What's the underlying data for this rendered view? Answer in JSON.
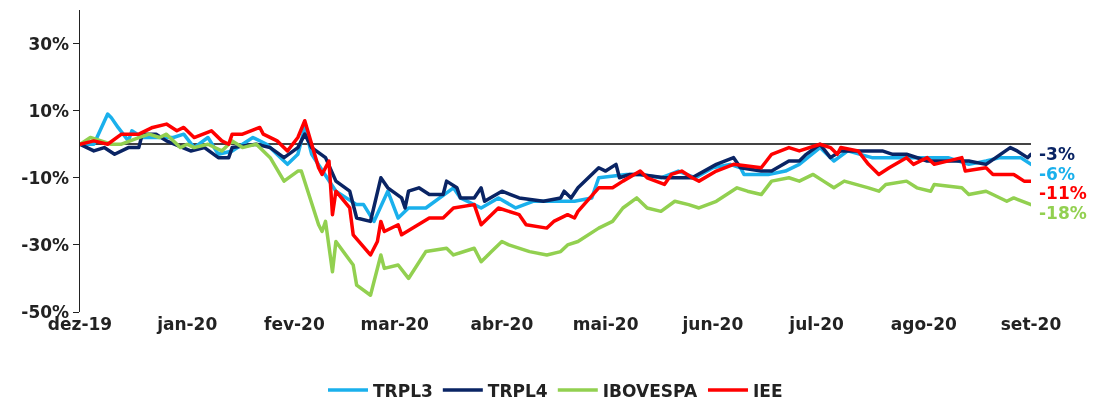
{
  "chart_data": {
    "type": "line",
    "xlim": [
      "2019-12-01",
      "2020-09-01"
    ],
    "xticks": [
      {
        "value": "2019-12-01",
        "label": "dez-19"
      },
      {
        "value": "2020-01-01",
        "label": "jan-20"
      },
      {
        "value": "2020-02-01",
        "label": "fev-20"
      },
      {
        "value": "2020-03-01",
        "label": "mar-20"
      },
      {
        "value": "2020-04-01",
        "label": "abr-20"
      },
      {
        "value": "2020-05-01",
        "label": "mai-20"
      },
      {
        "value": "2020-06-01",
        "label": "jun-20"
      },
      {
        "value": "2020-07-01",
        "label": "jul-20"
      },
      {
        "value": "2020-08-01",
        "label": "ago-20"
      },
      {
        "value": "2020-09-01",
        "label": "set-20"
      }
    ],
    "ylim": [
      -50,
      40
    ],
    "yticks": [
      {
        "value": 30,
        "label": "30%"
      },
      {
        "value": 10,
        "label": "10%"
      },
      {
        "value": -10,
        "label": "-10%"
      },
      {
        "value": -30,
        "label": "-30%"
      },
      {
        "value": -50,
        "label": "-50%"
      }
    ],
    "grid": false,
    "legend": "bottom",
    "marker": "none",
    "line_style": "solid",
    "series": [
      {
        "name": "TRPL3",
        "color": "#1ab0ec",
        "x": [
          "2019-12-01",
          "2019-12-05",
          "2019-12-09",
          "2019-12-10",
          "2019-12-12",
          "2019-12-15",
          "2019-12-16",
          "2019-12-19",
          "2019-12-24",
          "2019-12-28",
          "2019-12-31",
          "2020-01-03",
          "2020-01-07",
          "2020-01-10",
          "2020-01-14",
          "2020-01-20",
          "2020-01-24",
          "2020-01-28",
          "2020-01-30",
          "2020-02-02",
          "2020-02-04",
          "2020-02-06",
          "2020-02-13",
          "2020-02-19",
          "2020-02-21",
          "2020-02-24",
          "2020-02-28",
          "2020-03-02",
          "2020-03-05",
          "2020-03-10",
          "2020-03-18",
          "2020-03-20",
          "2020-03-26",
          "2020-03-31",
          "2020-04-05",
          "2020-04-10",
          "2020-04-18",
          "2020-04-22",
          "2020-04-27",
          "2020-04-29",
          "2020-05-07",
          "2020-05-11",
          "2020-05-17",
          "2020-05-22",
          "2020-05-27",
          "2020-06-01",
          "2020-06-06",
          "2020-06-09",
          "2020-06-10",
          "2020-06-17",
          "2020-06-22",
          "2020-06-26",
          "2020-07-02",
          "2020-07-06",
          "2020-07-10",
          "2020-07-17",
          "2020-07-29",
          "2020-08-08",
          "2020-08-14",
          "2020-08-19",
          "2020-08-23",
          "2020-08-29",
          "2020-09-01"
        ],
        "values": [
          0,
          0,
          9,
          8,
          5,
          1,
          4,
          2,
          2,
          2,
          3,
          -1,
          2,
          -3,
          -2,
          2,
          0,
          -4,
          -6,
          -3,
          5,
          -3,
          -14,
          -18,
          -18,
          -23,
          -14,
          -22,
          -19,
          -19,
          -13,
          -16,
          -19,
          -16,
          -19,
          -17,
          -17,
          -17,
          -16,
          -10,
          -9,
          -9,
          -10,
          -8,
          -10,
          -7,
          -6,
          -7,
          -9,
          -9,
          -8,
          -6,
          -1,
          -5,
          -2,
          -4,
          -4,
          -4,
          -6,
          -5,
          -4,
          -4,
          -6
        ]
      },
      {
        "name": "TRPL4",
        "color": "#0a2464",
        "x": [
          "2019-12-01",
          "2019-12-05",
          "2019-12-08",
          "2019-12-11",
          "2019-12-15",
          "2019-12-18",
          "2019-12-19",
          "2019-12-23",
          "2019-12-26",
          "2020-01-02",
          "2020-01-06",
          "2020-01-10",
          "2020-01-13",
          "2020-01-14",
          "2020-01-21",
          "2020-01-25",
          "2020-01-29",
          "2020-02-02",
          "2020-02-04",
          "2020-02-06",
          "2020-02-10",
          "2020-02-13",
          "2020-02-17",
          "2020-02-19",
          "2020-02-23",
          "2020-02-26",
          "2020-02-28",
          "2020-03-03",
          "2020-03-04",
          "2020-03-05",
          "2020-03-08",
          "2020-03-11",
          "2020-03-15",
          "2020-03-16",
          "2020-03-19",
          "2020-03-20",
          "2020-03-24",
          "2020-03-26",
          "2020-03-27",
          "2020-04-01",
          "2020-04-06",
          "2020-04-13",
          "2020-04-18",
          "2020-04-19",
          "2020-04-21",
          "2020-04-23",
          "2020-04-29",
          "2020-05-01",
          "2020-05-04",
          "2020-05-05",
          "2020-05-08",
          "2020-05-11",
          "2020-05-18",
          "2020-05-26",
          "2020-06-02",
          "2020-06-07",
          "2020-06-09",
          "2020-06-15",
          "2020-06-18",
          "2020-06-23",
          "2020-06-26",
          "2020-06-28",
          "2020-07-02",
          "2020-07-05",
          "2020-07-08",
          "2020-07-20",
          "2020-07-23",
          "2020-07-27",
          "2020-08-02",
          "2020-08-14",
          "2020-08-19",
          "2020-08-26",
          "2020-08-28",
          "2020-08-31",
          "2020-09-01"
        ],
        "values": [
          0,
          -2,
          -1,
          -3,
          -1,
          -1,
          3,
          3,
          1,
          -2,
          -1,
          -4,
          -4,
          -1,
          0,
          -1,
          -4,
          -1,
          3,
          -1,
          -4,
          -11,
          -14,
          -22,
          -23,
          -10,
          -13,
          -16,
          -19,
          -14,
          -13,
          -15,
          -15,
          -11,
          -13,
          -16,
          -16,
          -13,
          -17,
          -14,
          -16,
          -17,
          -16,
          -14,
          -16,
          -13,
          -7,
          -8,
          -6,
          -10,
          -9,
          -9,
          -10,
          -10,
          -6,
          -4,
          -7,
          -8,
          -8,
          -5,
          -5,
          -3,
          0,
          -4,
          -2,
          -2,
          -3,
          -3,
          -5,
          -5,
          -6,
          -1,
          -2,
          -4,
          -3
        ]
      },
      {
        "name": "IBOVESPA",
        "color": "#92d050",
        "x": [
          "2019-12-01",
          "2019-12-04",
          "2019-12-10",
          "2019-12-13",
          "2019-12-18",
          "2019-12-21",
          "2019-12-24",
          "2019-12-26",
          "2019-12-30",
          "2020-01-01",
          "2020-01-03",
          "2020-01-07",
          "2020-01-11",
          "2020-01-14",
          "2020-01-17",
          "2020-01-21",
          "2020-01-25",
          "2020-01-29",
          "2020-02-02",
          "2020-02-03",
          "2020-02-08",
          "2020-02-09",
          "2020-02-10",
          "2020-02-12",
          "2020-02-13",
          "2020-02-18",
          "2020-02-19",
          "2020-02-23",
          "2020-02-26",
          "2020-02-27",
          "2020-03-02",
          "2020-03-05",
          "2020-03-10",
          "2020-03-16",
          "2020-03-18",
          "2020-03-24",
          "2020-03-26",
          "2020-03-29",
          "2020-04-01",
          "2020-04-03",
          "2020-04-09",
          "2020-04-14",
          "2020-04-18",
          "2020-04-20",
          "2020-04-23",
          "2020-04-29",
          "2020-05-03",
          "2020-05-06",
          "2020-05-10",
          "2020-05-13",
          "2020-05-17",
          "2020-05-21",
          "2020-05-25",
          "2020-05-28",
          "2020-06-02",
          "2020-06-08",
          "2020-06-11",
          "2020-06-15",
          "2020-06-18",
          "2020-06-23",
          "2020-06-26",
          "2020-06-30",
          "2020-07-03",
          "2020-07-06",
          "2020-07-09",
          "2020-07-16",
          "2020-07-19",
          "2020-07-21",
          "2020-07-27",
          "2020-07-30",
          "2020-08-03",
          "2020-08-04",
          "2020-08-12",
          "2020-08-14",
          "2020-08-19",
          "2020-08-25",
          "2020-08-27",
          "2020-09-01"
        ],
        "values": [
          0,
          2,
          0,
          0,
          2,
          3,
          2,
          3,
          -1,
          0,
          -1,
          0,
          -2,
          1,
          -1,
          0,
          -4,
          -11,
          -8,
          -8,
          -24,
          -26,
          -23,
          -38,
          -29,
          -36,
          -42,
          -45,
          -33,
          -37,
          -36,
          -40,
          -32,
          -31,
          -33,
          -31,
          -35,
          -32,
          -29,
          -30,
          -32,
          -33,
          -32,
          -30,
          -29,
          -25,
          -23,
          -19,
          -16,
          -19,
          -20,
          -17,
          -18,
          -19,
          -17,
          -13,
          -14,
          -15,
          -11,
          -10,
          -11,
          -9,
          -11,
          -13,
          -11,
          -13,
          -14,
          -12,
          -11,
          -13,
          -14,
          -12,
          -13,
          -15,
          -14,
          -17,
          -16,
          -18
        ]
      },
      {
        "name": "IEE",
        "color": "#ff0000",
        "x": [
          "2019-12-01",
          "2019-12-05",
          "2019-12-09",
          "2019-12-13",
          "2019-12-18",
          "2019-12-22",
          "2019-12-26",
          "2019-12-29",
          "2019-12-31",
          "2020-01-03",
          "2020-01-08",
          "2020-01-11",
          "2020-01-13",
          "2020-01-14",
          "2020-01-17",
          "2020-01-22",
          "2020-01-23",
          "2020-01-27",
          "2020-01-30",
          "2020-02-02",
          "2020-02-04",
          "2020-02-08",
          "2020-02-09",
          "2020-02-11",
          "2020-02-12",
          "2020-02-13",
          "2020-02-17",
          "2020-02-18",
          "2020-02-23",
          "2020-02-25",
          "2020-02-26",
          "2020-02-27",
          "2020-03-02",
          "2020-03-03",
          "2020-03-11",
          "2020-03-15",
          "2020-03-18",
          "2020-03-24",
          "2020-03-26",
          "2020-03-31",
          "2020-04-06",
          "2020-04-08",
          "2020-04-14",
          "2020-04-16",
          "2020-04-20",
          "2020-04-22",
          "2020-04-23",
          "2020-04-29",
          "2020-05-03",
          "2020-05-06",
          "2020-05-11",
          "2020-05-13",
          "2020-05-18",
          "2020-05-20",
          "2020-05-23",
          "2020-05-26",
          "2020-05-28",
          "2020-06-02",
          "2020-06-07",
          "2020-06-15",
          "2020-06-18",
          "2020-06-23",
          "2020-06-26",
          "2020-07-02",
          "2020-07-05",
          "2020-07-07",
          "2020-07-08",
          "2020-07-13",
          "2020-07-16",
          "2020-07-19",
          "2020-07-22",
          "2020-07-27",
          "2020-07-29",
          "2020-08-02",
          "2020-08-04",
          "2020-08-12",
          "2020-08-13",
          "2020-08-19",
          "2020-08-21",
          "2020-08-27",
          "2020-08-30",
          "2020-09-01"
        ],
        "values": [
          0,
          1,
          0,
          3,
          3,
          5,
          6,
          4,
          5,
          2,
          4,
          1,
          0,
          3,
          3,
          5,
          3,
          1,
          -2,
          2,
          7,
          -7,
          -9,
          -5,
          -21,
          -14,
          -19,
          -27,
          -33,
          -29,
          -23,
          -26,
          -24,
          -27,
          -22,
          -22,
          -19,
          -18,
          -24,
          -19,
          -21,
          -24,
          -25,
          -23,
          -21,
          -22,
          -20,
          -13,
          -13,
          -11,
          -8,
          -10,
          -12,
          -9,
          -8,
          -10,
          -11,
          -8,
          -6,
          -7,
          -3,
          -1,
          -2,
          0,
          -1,
          -3,
          -1,
          -2,
          -6,
          -9,
          -7,
          -4,
          -6,
          -4,
          -6,
          -4,
          -8,
          -7,
          -9,
          -9,
          -11,
          -11
        ]
      }
    ],
    "annotations": [
      {
        "text": "-3%",
        "x": "2020-09-01",
        "y": -3
      },
      {
        "text": "-6%",
        "x": "2020-09-01",
        "y": -6
      },
      {
        "text": "-11%",
        "x": "2020-09-01",
        "y": -11
      },
      {
        "text": "-18%",
        "x": "2020-09-01",
        "y": -18
      }
    ]
  }
}
